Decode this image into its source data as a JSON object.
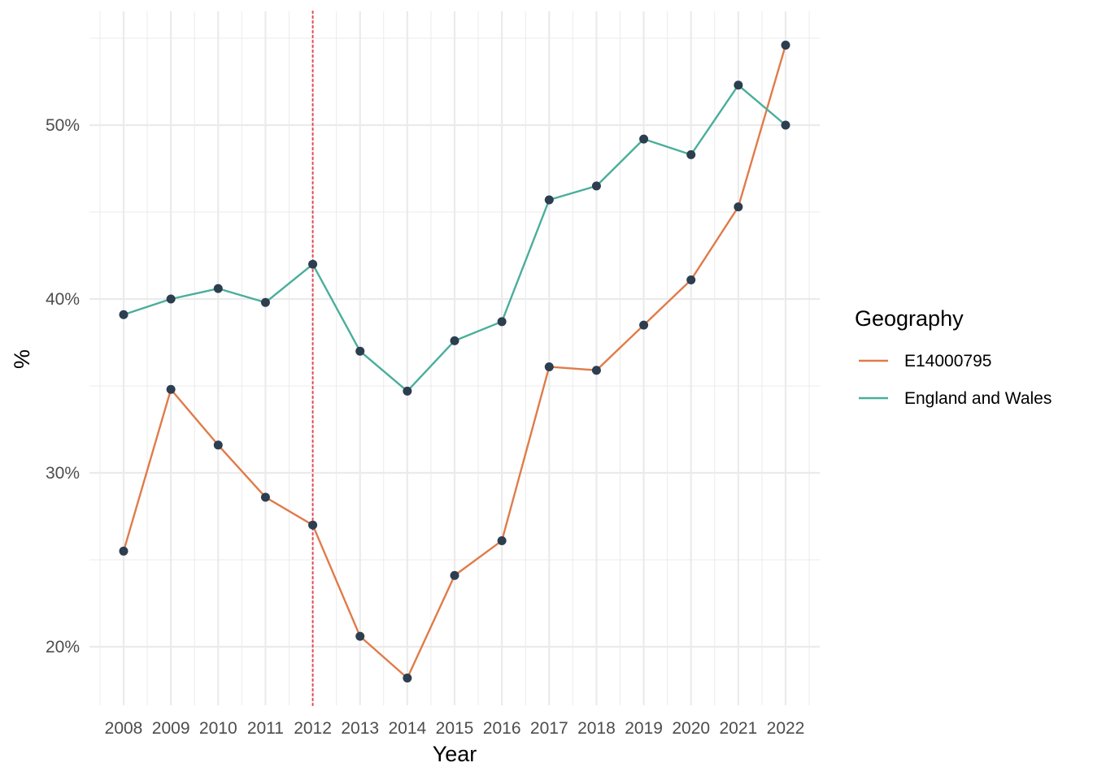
{
  "chart_data": {
    "type": "line",
    "xlabel": "Year",
    "ylabel": "%",
    "x": [
      2008,
      2009,
      2010,
      2011,
      2012,
      2013,
      2014,
      2015,
      2016,
      2017,
      2018,
      2019,
      2020,
      2021,
      2022
    ],
    "y_ticks": [
      0.2,
      0.3,
      0.4,
      0.5
    ],
    "y_tick_labels": [
      "20%",
      "30%",
      "40%",
      "50%"
    ],
    "ylim": [
      0.165,
      0.565
    ],
    "grid": true,
    "reference_line": {
      "x": 2012,
      "color": "#e8434f",
      "style": "dotted"
    },
    "point_color": "#2c3e50",
    "legend": {
      "title": "Geography",
      "position": "right"
    },
    "series": [
      {
        "name": "E14000795",
        "color": "#e07b4a",
        "values": [
          0.255,
          0.348,
          0.316,
          0.286,
          0.27,
          0.206,
          0.182,
          0.241,
          0.261,
          0.361,
          0.359,
          0.385,
          0.411,
          0.453,
          0.546
        ]
      },
      {
        "name": "England and Wales",
        "color": "#4aae9b",
        "values": [
          0.391,
          0.4,
          0.406,
          0.398,
          0.42,
          0.37,
          0.347,
          0.376,
          0.387,
          0.457,
          0.465,
          0.492,
          0.483,
          0.523,
          0.5
        ]
      }
    ]
  }
}
